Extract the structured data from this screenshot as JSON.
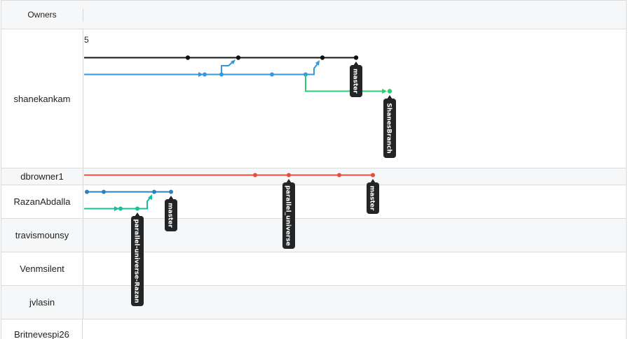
{
  "header": {
    "owners_label": "Owners"
  },
  "owners": [
    {
      "name": "shanekankam"
    },
    {
      "name": "dbrowner1"
    },
    {
      "name": "RazanAbdalla"
    },
    {
      "name": "travismounsy"
    },
    {
      "name": "Venmsilent"
    },
    {
      "name": "jvlasin"
    },
    {
      "name": "Britnevespi26"
    }
  ],
  "graph": {
    "count_label": "5",
    "colors": {
      "master_black": "#111111",
      "blue": "#3498db",
      "green": "#2ecc71",
      "red": "#e74c3c",
      "steel_blue": "#2f7fb8",
      "teal": "#1abc9c",
      "tag_bg": "#222426"
    },
    "branch_tags": [
      {
        "owner": "shanekankam",
        "label": "master"
      },
      {
        "owner": "shanekankam",
        "label": "ShanesBranch"
      },
      {
        "owner": "dbrowner1",
        "label": "parallel_universe"
      },
      {
        "owner": "dbrowner1",
        "label": "master"
      },
      {
        "owner": "RazanAbdalla",
        "label": "parallel-universe-Razan"
      },
      {
        "owner": "RazanAbdalla",
        "label": "master"
      }
    ]
  }
}
